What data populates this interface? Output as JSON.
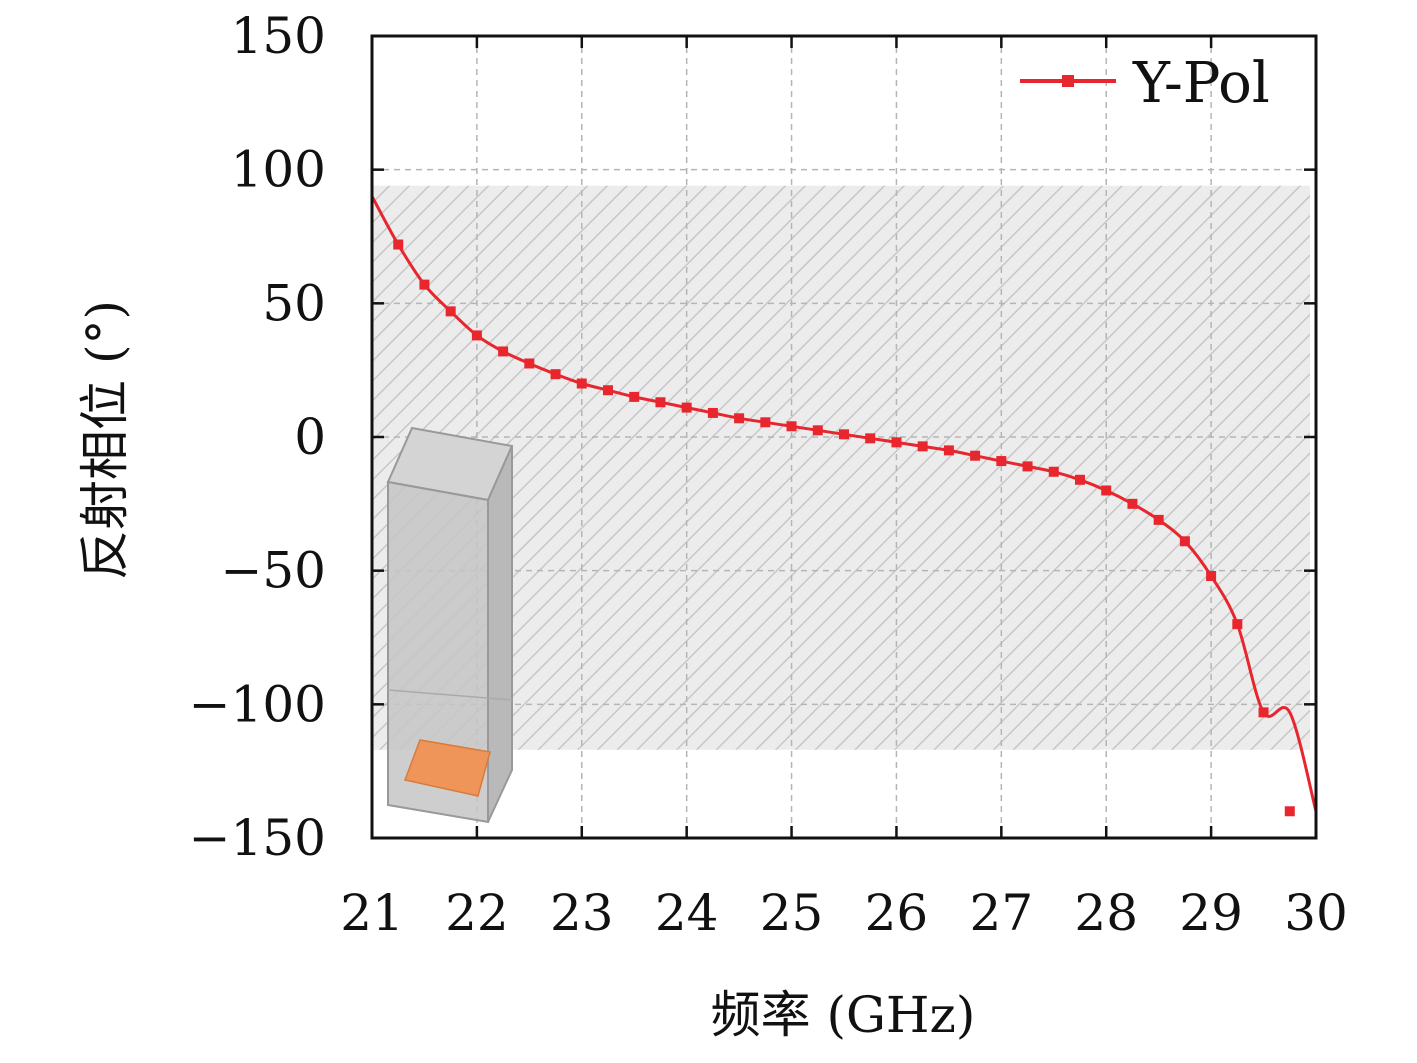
{
  "chart_data": {
    "type": "line",
    "xlabel": "频率 (GHz)",
    "ylabel": "反射相位 (°)",
    "xlim": [
      21,
      30
    ],
    "ylim": [
      -150,
      150
    ],
    "xticks": [
      "21",
      "22",
      "23",
      "24",
      "25",
      "26",
      "27",
      "28",
      "29",
      "30"
    ],
    "yticks": [
      "150",
      "100",
      "50",
      "0",
      "−50",
      "−100",
      "−150"
    ],
    "legend_position": "top-right",
    "grid": "dashed",
    "shaded_band": {
      "y_range": [
        -117,
        94
      ],
      "pattern": "diagonal-hatch"
    },
    "inset": "unit-cell",
    "series": [
      {
        "name": "Y-Pol",
        "color": "#e8262e",
        "marker": "square",
        "x": [
          21.0,
          21.25,
          21.5,
          21.75,
          22.0,
          22.25,
          22.5,
          22.75,
          23.0,
          23.25,
          23.5,
          23.75,
          24.0,
          24.25,
          24.5,
          24.75,
          25.0,
          25.25,
          25.5,
          25.75,
          26.0,
          26.25,
          26.5,
          26.75,
          27.0,
          27.25,
          27.5,
          27.75,
          28.0,
          28.25,
          28.5,
          28.75,
          29.0,
          29.25,
          29.5,
          29.75,
          30.0
        ],
        "y": [
          90,
          72,
          57,
          47,
          38,
          32,
          27.5,
          23.5,
          20,
          17.5,
          15,
          13,
          11,
          9,
          7,
          5.5,
          4,
          2.5,
          1,
          -0.5,
          -2,
          -3.5,
          -5,
          -7,
          -9,
          -11,
          -13,
          -16,
          -20,
          -25,
          -31,
          -39,
          -52,
          -70,
          -103,
          -140,
          -140
        ]
      }
    ],
    "series_markers_x": [
      21.25,
      21.5,
      21.75,
      22.0,
      22.25,
      22.5,
      22.75,
      23.0,
      23.25,
      23.5,
      23.75,
      24.0,
      24.25,
      24.5,
      24.75,
      25.0,
      25.25,
      25.5,
      25.75,
      26.0,
      26.25,
      26.5,
      26.75,
      27.0,
      27.25,
      27.5,
      27.75,
      28.0,
      28.25,
      28.5,
      28.75,
      29.0,
      29.25,
      29.5,
      29.75
    ]
  }
}
